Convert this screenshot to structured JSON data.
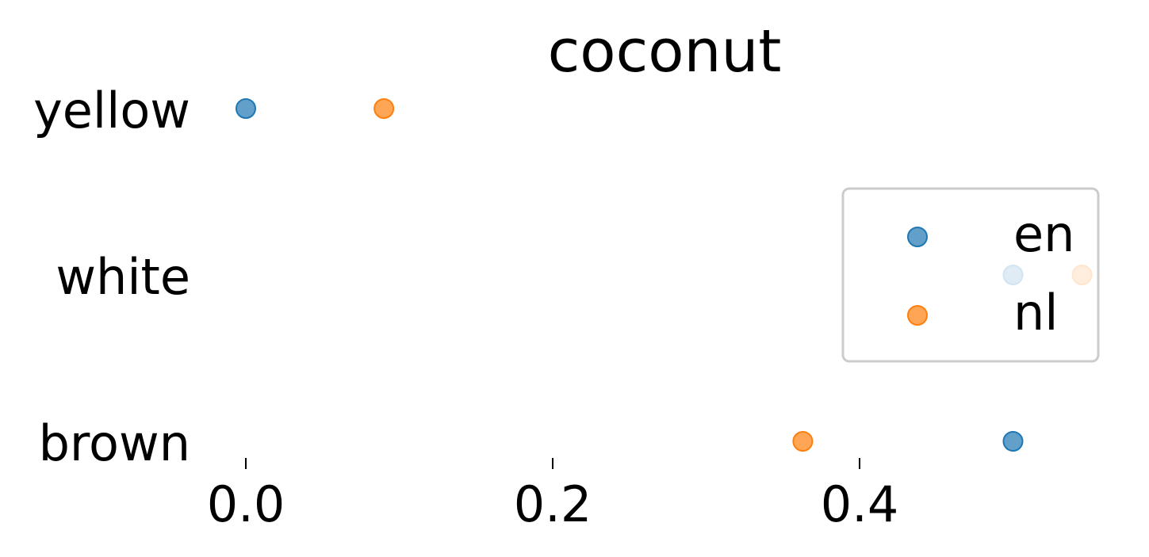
{
  "chart_data": {
    "type": "scatter",
    "title": "coconut",
    "categories": [
      "yellow",
      "white",
      "brown"
    ],
    "x_ticks": [
      "0.0",
      "0.2",
      "0.4"
    ],
    "x_tick_values": [
      0.0,
      0.2,
      0.4
    ],
    "xlim": [
      -0.006,
      0.561
    ],
    "series": [
      {
        "name": "en",
        "color": "#1f77b4",
        "values": [
          0.0,
          0.5,
          0.5
        ]
      },
      {
        "name": "nl",
        "color": "#ff7f0e",
        "values": [
          0.09,
          0.545,
          0.363
        ]
      }
    ],
    "legend": {
      "location": "right",
      "entries": [
        "en",
        "nl"
      ]
    },
    "grid": false
  }
}
